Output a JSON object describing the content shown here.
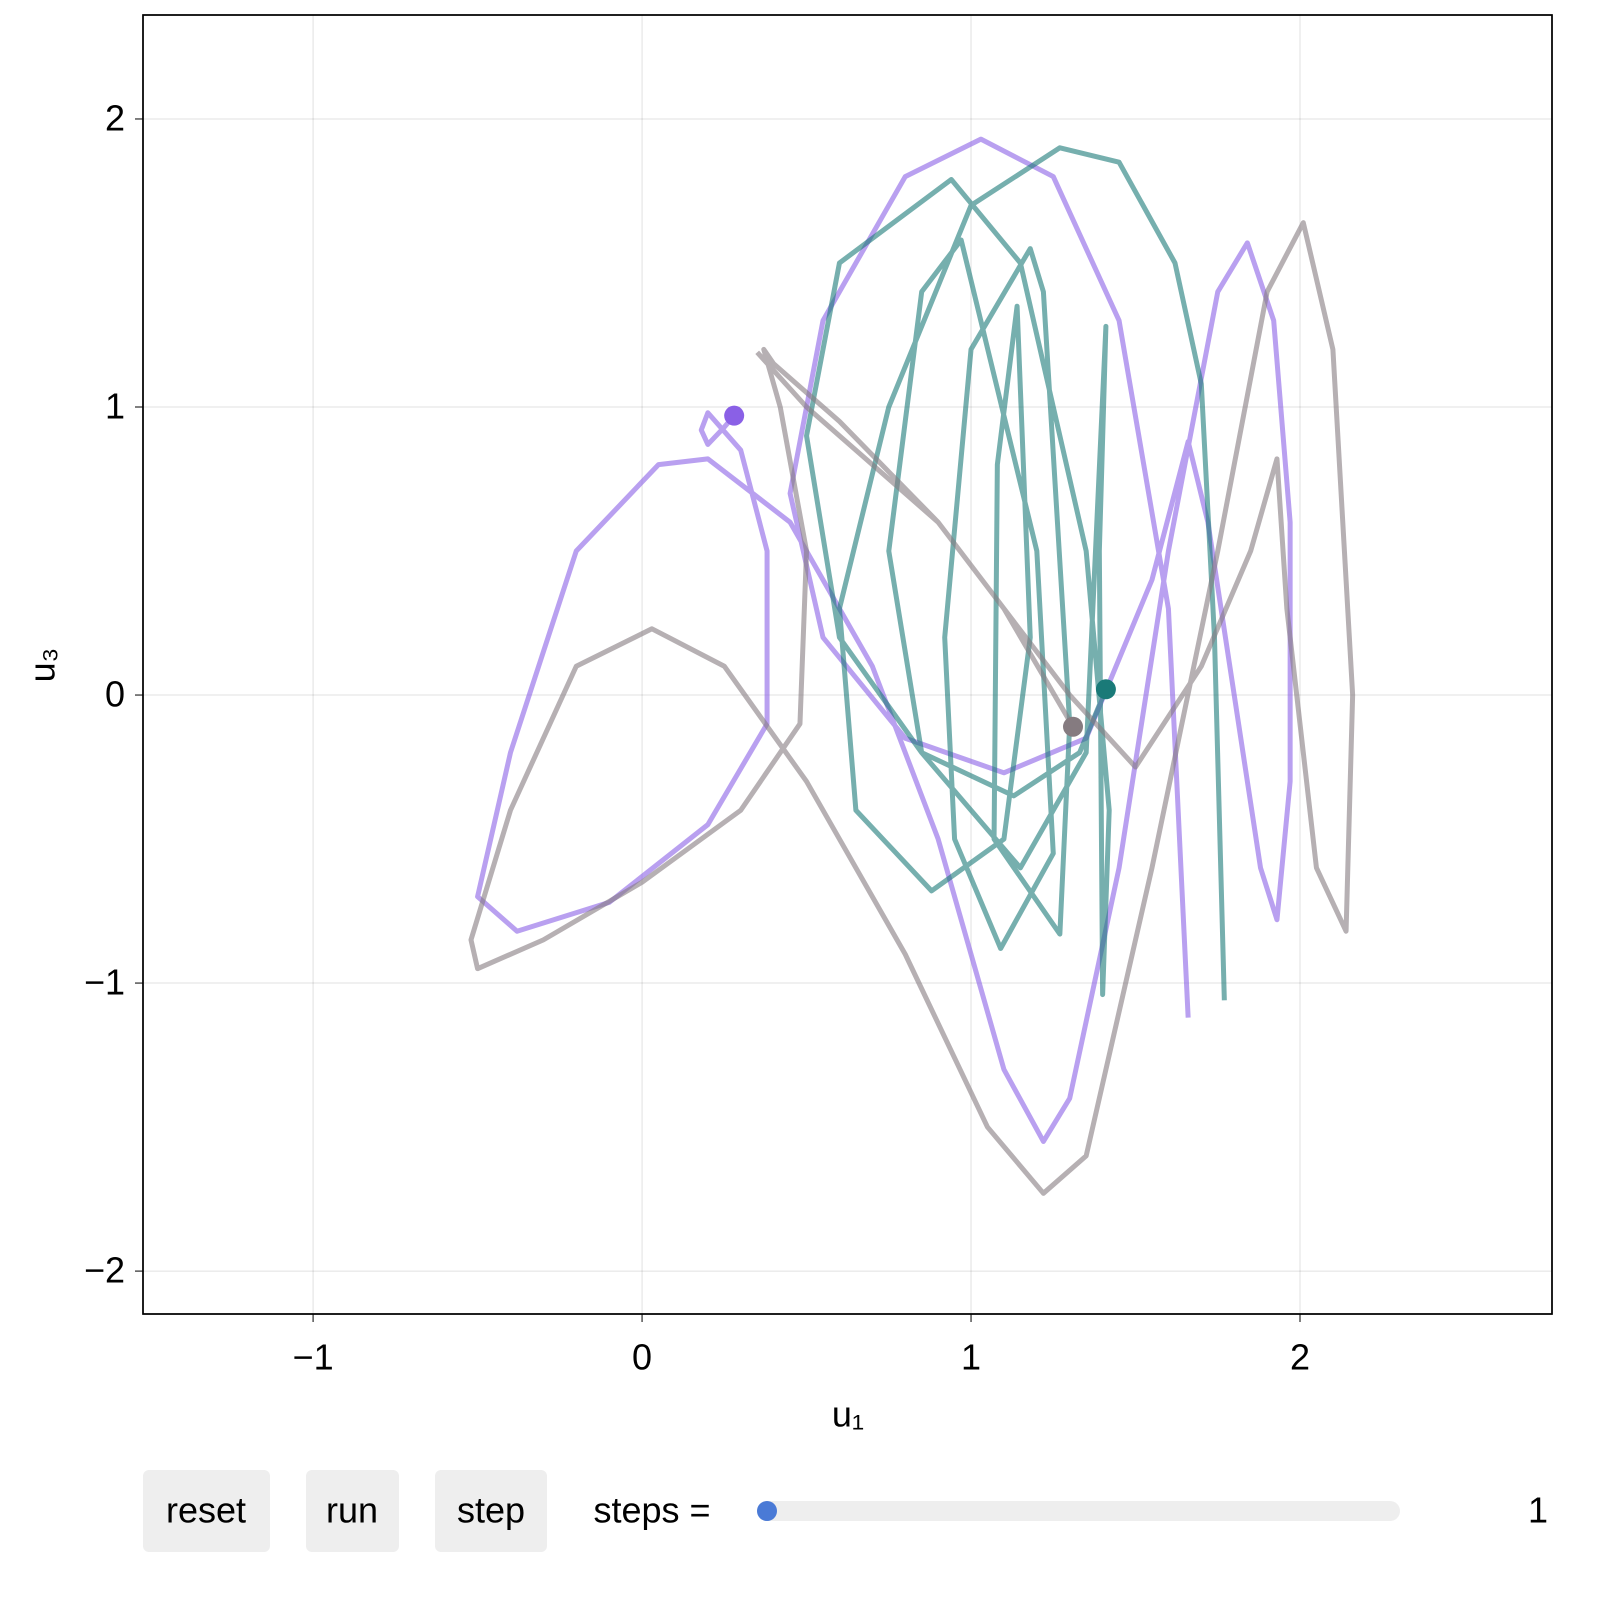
{
  "chart_data": {
    "type": "line",
    "x_label": "u₁",
    "y_label": "u₃",
    "xlim": [
      -1.517,
      2.766
    ],
    "ylim": [
      -2.149,
      2.361
    ],
    "xticks": [
      {
        "value": -1,
        "label": "−1"
      },
      0,
      1,
      2
    ],
    "yticks": [
      {
        "value": -2,
        "label": "−2"
      },
      {
        "value": -1,
        "label": "−1"
      },
      0,
      1,
      2
    ],
    "grid": true,
    "series": [
      {
        "color": "#8a60e6",
        "x": [
          1.66,
          1.6,
          1.45,
          1.25,
          1.03,
          0.8,
          0.55,
          0.45,
          0.55,
          0.8,
          1.1,
          1.35,
          1.55,
          1.66,
          1.72,
          1.8,
          1.88,
          1.93,
          1.97,
          1.97,
          1.92,
          1.84,
          1.75,
          1.6,
          1.45,
          1.3,
          1.22,
          1.1,
          0.9,
          0.7,
          0.45,
          0.2,
          0.05,
          -0.2,
          -0.4,
          -0.5,
          -0.38,
          -0.1,
          0.2,
          0.38,
          0.38,
          0.3,
          0.2,
          0.18,
          0.2,
          0.25,
          0.28
        ],
        "y": [
          -1.12,
          0.3,
          1.3,
          1.8,
          1.93,
          1.8,
          1.3,
          0.7,
          0.2,
          -0.15,
          -0.27,
          -0.15,
          0.4,
          0.88,
          0.6,
          0,
          -0.6,
          -0.78,
          -0.3,
          0.6,
          1.3,
          1.57,
          1.4,
          0.5,
          -0.6,
          -1.4,
          -1.55,
          -1.3,
          -0.5,
          0.1,
          0.6,
          0.82,
          0.8,
          0.5,
          -0.2,
          -0.7,
          -0.82,
          -0.72,
          -0.45,
          -0.1,
          0.5,
          0.85,
          0.98,
          0.92,
          0.87,
          0.93,
          0.97
        ]
      },
      {
        "color": "#1a7a78",
        "x": [
          1.77,
          1.74,
          1.7,
          1.62,
          1.45,
          1.27,
          1.0,
          0.75,
          0.6,
          0.65,
          0.88,
          1.1,
          1.18,
          1.14,
          1.08,
          1.07,
          1.27,
          1.3,
          1.22,
          1.18,
          1.0,
          0.92,
          0.95,
          1.09,
          1.25,
          1.2,
          0.97,
          0.85,
          0.75,
          0.85,
          1.15,
          1.35,
          1.41,
          1.39,
          1.4,
          1.42,
          1.35,
          1.15,
          0.94,
          0.6,
          0.5,
          0.6,
          0.85,
          1.13,
          1.33,
          1.41
        ],
        "y": [
          -1.06,
          0.2,
          1.08,
          1.5,
          1.85,
          1.9,
          1.7,
          1.0,
          0.3,
          -0.4,
          -0.68,
          -0.5,
          0.2,
          1.35,
          0.8,
          -0.5,
          -0.83,
          -0.1,
          1.4,
          1.55,
          1.2,
          0.2,
          -0.5,
          -0.88,
          -0.55,
          0.5,
          1.58,
          1.4,
          0.5,
          -0.2,
          -0.6,
          -0.2,
          1.28,
          0.5,
          -1.04,
          -0.4,
          0.5,
          1.5,
          1.79,
          1.5,
          0.9,
          0.2,
          -0.2,
          -0.35,
          -0.2,
          0.02
        ]
      },
      {
        "color": "#857b80",
        "x": [
          0.35,
          0.5,
          0.9,
          1.3,
          1.5,
          1.7,
          1.85,
          1.93,
          1.96,
          2.05,
          2.14,
          2.16,
          2.1,
          2.01,
          1.9,
          1.75,
          1.55,
          1.35,
          1.22,
          1.05,
          0.8,
          0.5,
          0.25,
          0.03,
          -0.2,
          -0.4,
          -0.52,
          -0.5,
          -0.3,
          0,
          0.3,
          0.48,
          0.5,
          0.42,
          0.37,
          0.4,
          0.6,
          0.9,
          1.1,
          1.31
        ],
        "y": [
          1.19,
          1.0,
          0.6,
          0.0,
          -0.25,
          0.1,
          0.5,
          0.82,
          0.3,
          -0.6,
          -0.82,
          0,
          1.2,
          1.64,
          1.4,
          0.5,
          -0.6,
          -1.6,
          -1.73,
          -1.5,
          -0.9,
          -0.3,
          0.1,
          0.23,
          0.1,
          -0.4,
          -0.85,
          -0.95,
          -0.85,
          -0.65,
          -0.4,
          -0.1,
          0.5,
          1.0,
          1.2,
          1.15,
          0.95,
          0.6,
          0.3,
          -0.11
        ]
      }
    ]
  },
  "controls": {
    "buttons": [
      "reset",
      "run",
      "step"
    ],
    "slider_label": "steps =",
    "slider_value": 1
  }
}
